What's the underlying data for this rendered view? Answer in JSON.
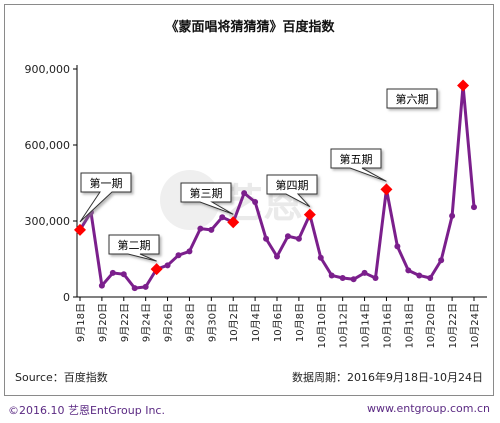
{
  "chart_data": {
    "type": "line",
    "title": "《蒙面唱将猜猜猜》百度指数",
    "y_ticks": [
      "900,000",
      "600,000",
      "300,000",
      "0"
    ],
    "y_tick_values": [
      900000,
      600000,
      300000,
      0
    ],
    "ylim": [
      0,
      900000
    ],
    "x_tick_labels": [
      "9月18日",
      "9月20日",
      "9月22日",
      "9月24日",
      "9月26日",
      "9月28日",
      "9月30日",
      "10月2日",
      "10月4日",
      "10月6日",
      "10月8日",
      "10月10日",
      "10月12日",
      "10月14日",
      "10月16日",
      "10月18日",
      "10月20日",
      "10月22日",
      "10月24日"
    ],
    "x": [
      "9月18日",
      "9月19日",
      "9月20日",
      "9月21日",
      "9月22日",
      "9月23日",
      "9月24日",
      "9月25日",
      "9月26日",
      "9月27日",
      "9月28日",
      "9月29日",
      "9月30日",
      "10月1日",
      "10月2日",
      "10月3日",
      "10月4日",
      "10月5日",
      "10月6日",
      "10月7日",
      "10月8日",
      "10月9日",
      "10月10日",
      "10月11日",
      "10月12日",
      "10月13日",
      "10月14日",
      "10月15日",
      "10月16日",
      "10月17日",
      "10月18日",
      "10月19日",
      "10月20日",
      "10月21日",
      "10月22日",
      "10月23日",
      "10月24日"
    ],
    "values": [
      265000,
      335000,
      45000,
      95000,
      90000,
      35000,
      40000,
      110000,
      125000,
      165000,
      180000,
      270000,
      265000,
      315000,
      295000,
      410000,
      375000,
      230000,
      160000,
      240000,
      230000,
      325000,
      155000,
      85000,
      75000,
      70000,
      95000,
      75000,
      425000,
      200000,
      105000,
      85000,
      75000,
      145000,
      320000,
      835000,
      355000
    ],
    "grid": false,
    "line_color": "#7b1f8c",
    "highlight_color": "#ff0000",
    "episodes": [
      {
        "label": "第一期",
        "index": 0
      },
      {
        "label": "第二期",
        "index": 7
      },
      {
        "label": "第三期",
        "index": 14
      },
      {
        "label": "第四期",
        "index": 21
      },
      {
        "label": "第五期",
        "index": 28
      },
      {
        "label": "第六期",
        "index": 35
      }
    ]
  },
  "footer": {
    "source": "Source：百度指数",
    "period": "数据周期：2016年9月18日-10月24日"
  },
  "copyright": "©2016.10  艺恩EntGroup Inc.",
  "website": "www.entgroup.com.cn"
}
